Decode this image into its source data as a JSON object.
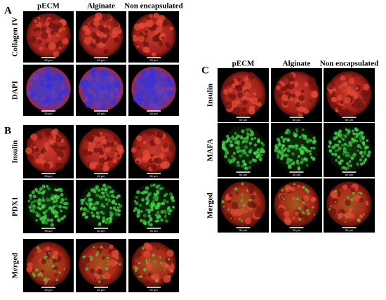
{
  "panels": [
    {
      "label": "A",
      "columns": [
        "pECM",
        "Alginate",
        "Non encapsulated"
      ],
      "rows": [
        "Collagen IV",
        "DAPI"
      ]
    },
    {
      "label": "B",
      "rows": [
        "Insulin",
        "PDX1",
        "Merged"
      ]
    },
    {
      "label": "C",
      "columns": [
        "pECM",
        "Alginate",
        "Non encapsulated"
      ],
      "rows": [
        "Insulin",
        "MAFA",
        "Merged"
      ]
    }
  ],
  "scale_bar_label": "50 μm"
}
